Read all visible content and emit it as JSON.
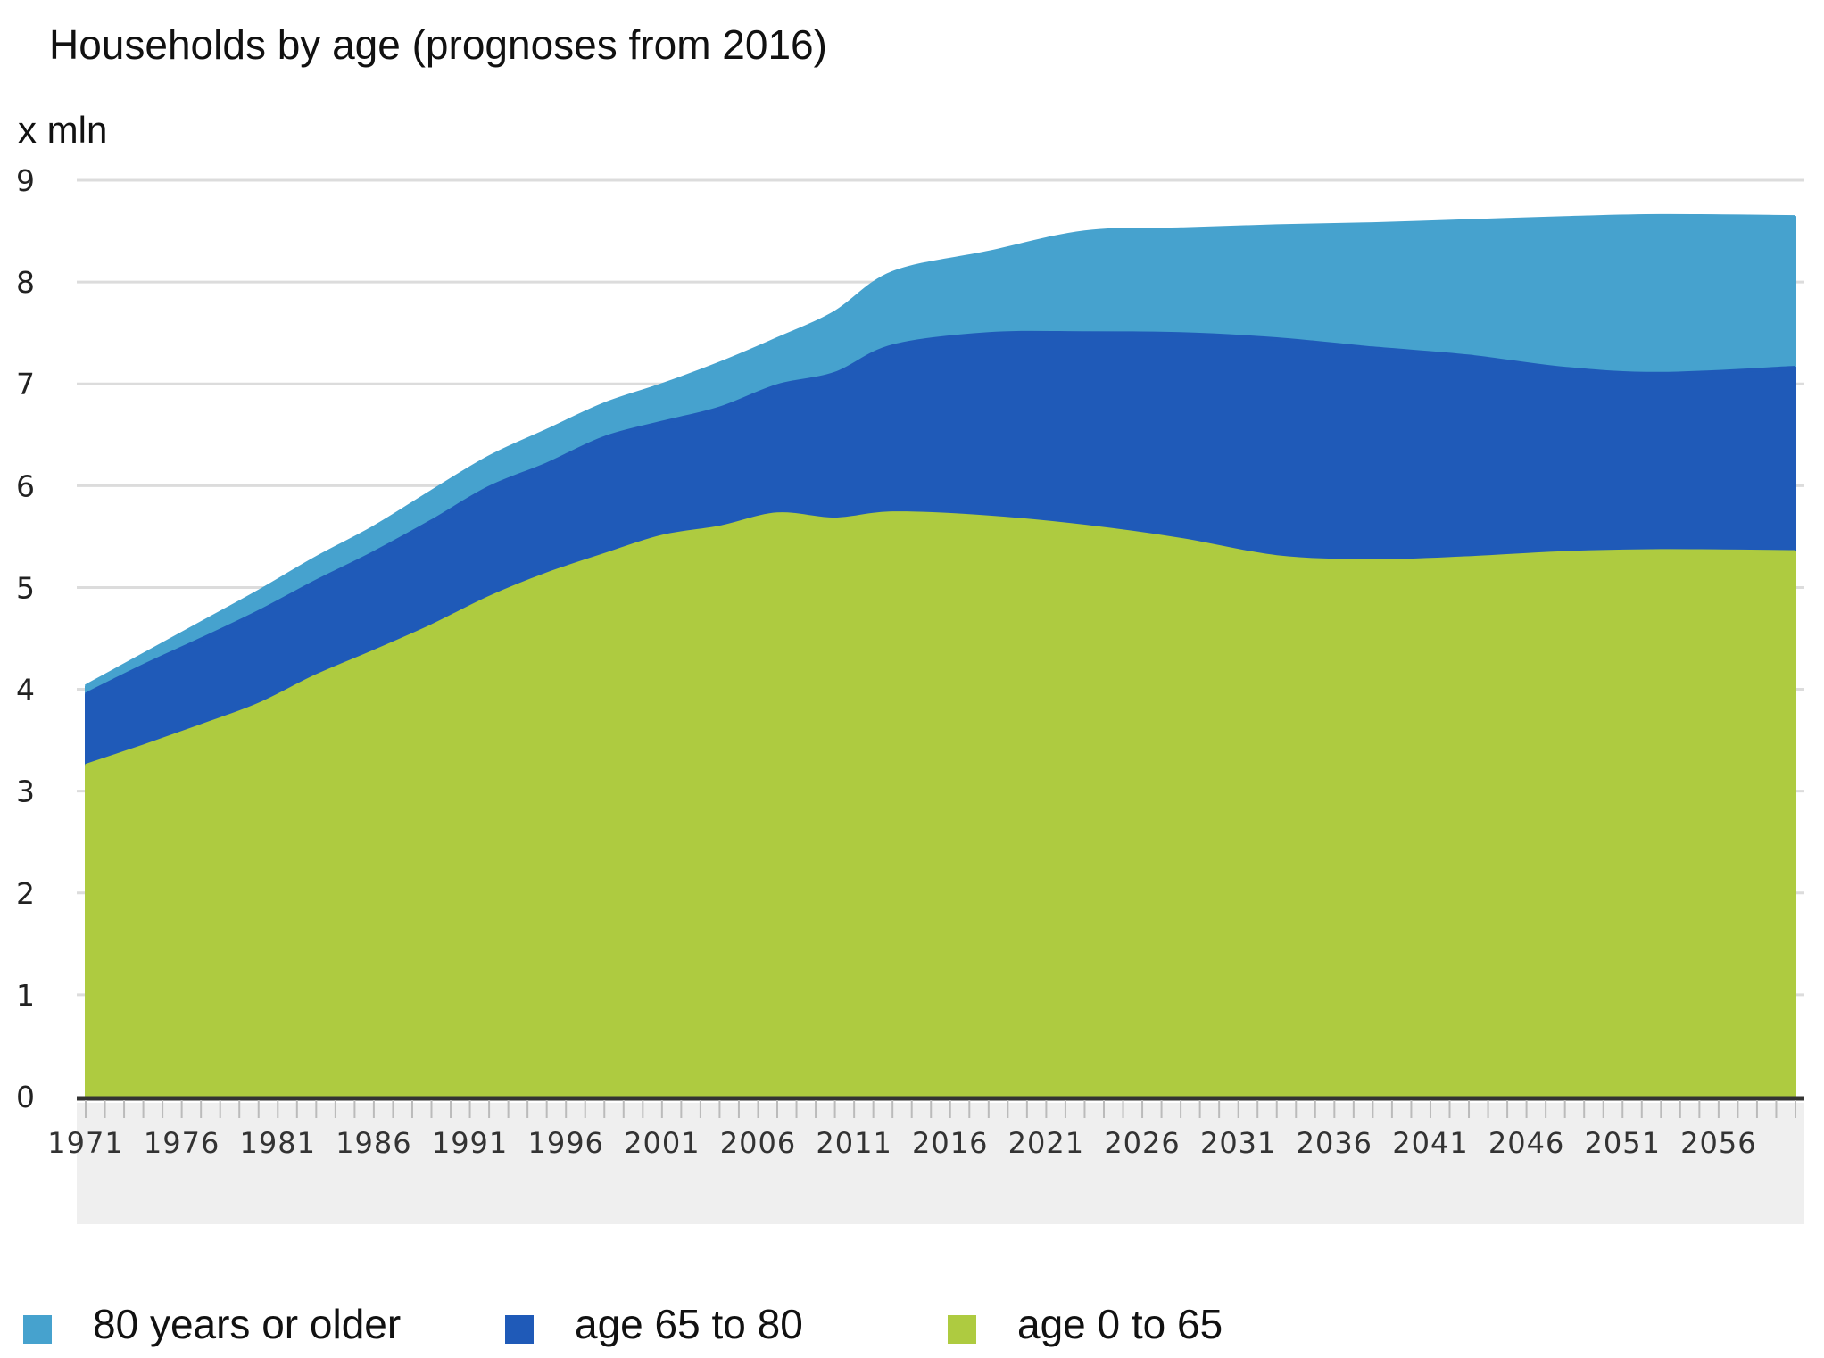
{
  "chart_data": {
    "type": "area",
    "stacked": true,
    "title": "Households by age (prognoses from 2016)",
    "unit_label": "x mln",
    "ylim": [
      0,
      9
    ],
    "yticks": [
      "0",
      "1",
      "2",
      "3",
      "4",
      "5",
      "6",
      "7",
      "8",
      "9"
    ],
    "x_start": 1971,
    "x_end": 2060,
    "xtick_labels": [
      "1971",
      "1976",
      "1981",
      "1986",
      "1991",
      "1996",
      "2001",
      "2006",
      "2011",
      "2016",
      "2021",
      "2026",
      "2031",
      "2036",
      "2041",
      "2046",
      "2051",
      "2056"
    ],
    "grid": true,
    "legend_position": "bottom",
    "series": [
      {
        "name": "age 0 to 65",
        "color": "#AECB40",
        "values": [
          3.25,
          3.44,
          3.64,
          3.85,
          4.13,
          4.37,
          4.62,
          4.9,
          5.13,
          5.32,
          5.5,
          5.59,
          5.72,
          5.67,
          5.73,
          5.69,
          5.6,
          5.47,
          5.3,
          5.26,
          5.29,
          5.34,
          5.36,
          5.35
        ]
      },
      {
        "name": "age 65 to 80",
        "color": "#1F5AB8",
        "values": [
          0.7,
          0.79,
          0.85,
          0.91,
          0.93,
          0.97,
          1.03,
          1.08,
          1.08,
          1.15,
          1.12,
          1.17,
          1.26,
          1.43,
          1.64,
          1.8,
          1.9,
          2.02,
          2.14,
          2.09,
          1.98,
          1.81,
          1.74,
          1.81
        ]
      },
      {
        "name": "80 years or older",
        "color": "#46A2CE",
        "values": [
          0.08,
          0.11,
          0.16,
          0.2,
          0.23,
          0.25,
          0.29,
          0.3,
          0.33,
          0.33,
          0.37,
          0.44,
          0.46,
          0.6,
          0.72,
          0.8,
          0.99,
          1.03,
          1.11,
          1.22,
          1.33,
          1.48,
          1.55,
          1.48
        ]
      }
    ],
    "x": [
      1971,
      1974,
      1977,
      1980,
      1983,
      1986,
      1989,
      1992,
      1995,
      1998,
      2001,
      2004,
      2007,
      2010,
      2013,
      2018,
      2023,
      2028,
      2033,
      2038,
      2043,
      2048,
      2053,
      2060
    ]
  }
}
